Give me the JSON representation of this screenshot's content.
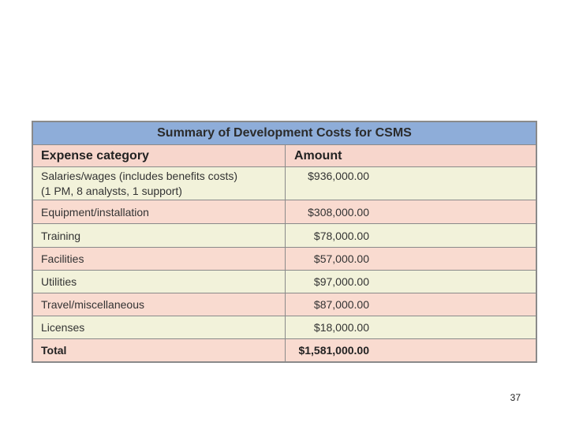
{
  "table": {
    "title": "Summary of Development Costs for CSMS",
    "headers": {
      "category": "Expense category",
      "amount": "Amount"
    },
    "rows": [
      {
        "category": "Salaries/wages (includes benefits costs)",
        "category_line2": "(1 PM, 8 analysts, 1 support)",
        "amount": "$936,000.00"
      },
      {
        "category": "Equipment/installation",
        "amount": "$308,000.00"
      },
      {
        "category": "Training",
        "amount": "$78,000.00"
      },
      {
        "category": "Facilities",
        "amount": "$57,000.00"
      },
      {
        "category": "Utilities",
        "amount": "$97,000.00"
      },
      {
        "category": "Travel/miscellaneous",
        "amount": "$87,000.00"
      },
      {
        "category": "Licenses",
        "amount": "$18,000.00"
      }
    ],
    "total": {
      "category": "Total",
      "amount": "$1,581,000.00"
    }
  },
  "page_number": "37",
  "colors": {
    "title_bg": "#8eadd9",
    "pink_row": "#f9dbd0",
    "cream_row": "#f2f2da",
    "border": "#8a8a8a"
  }
}
